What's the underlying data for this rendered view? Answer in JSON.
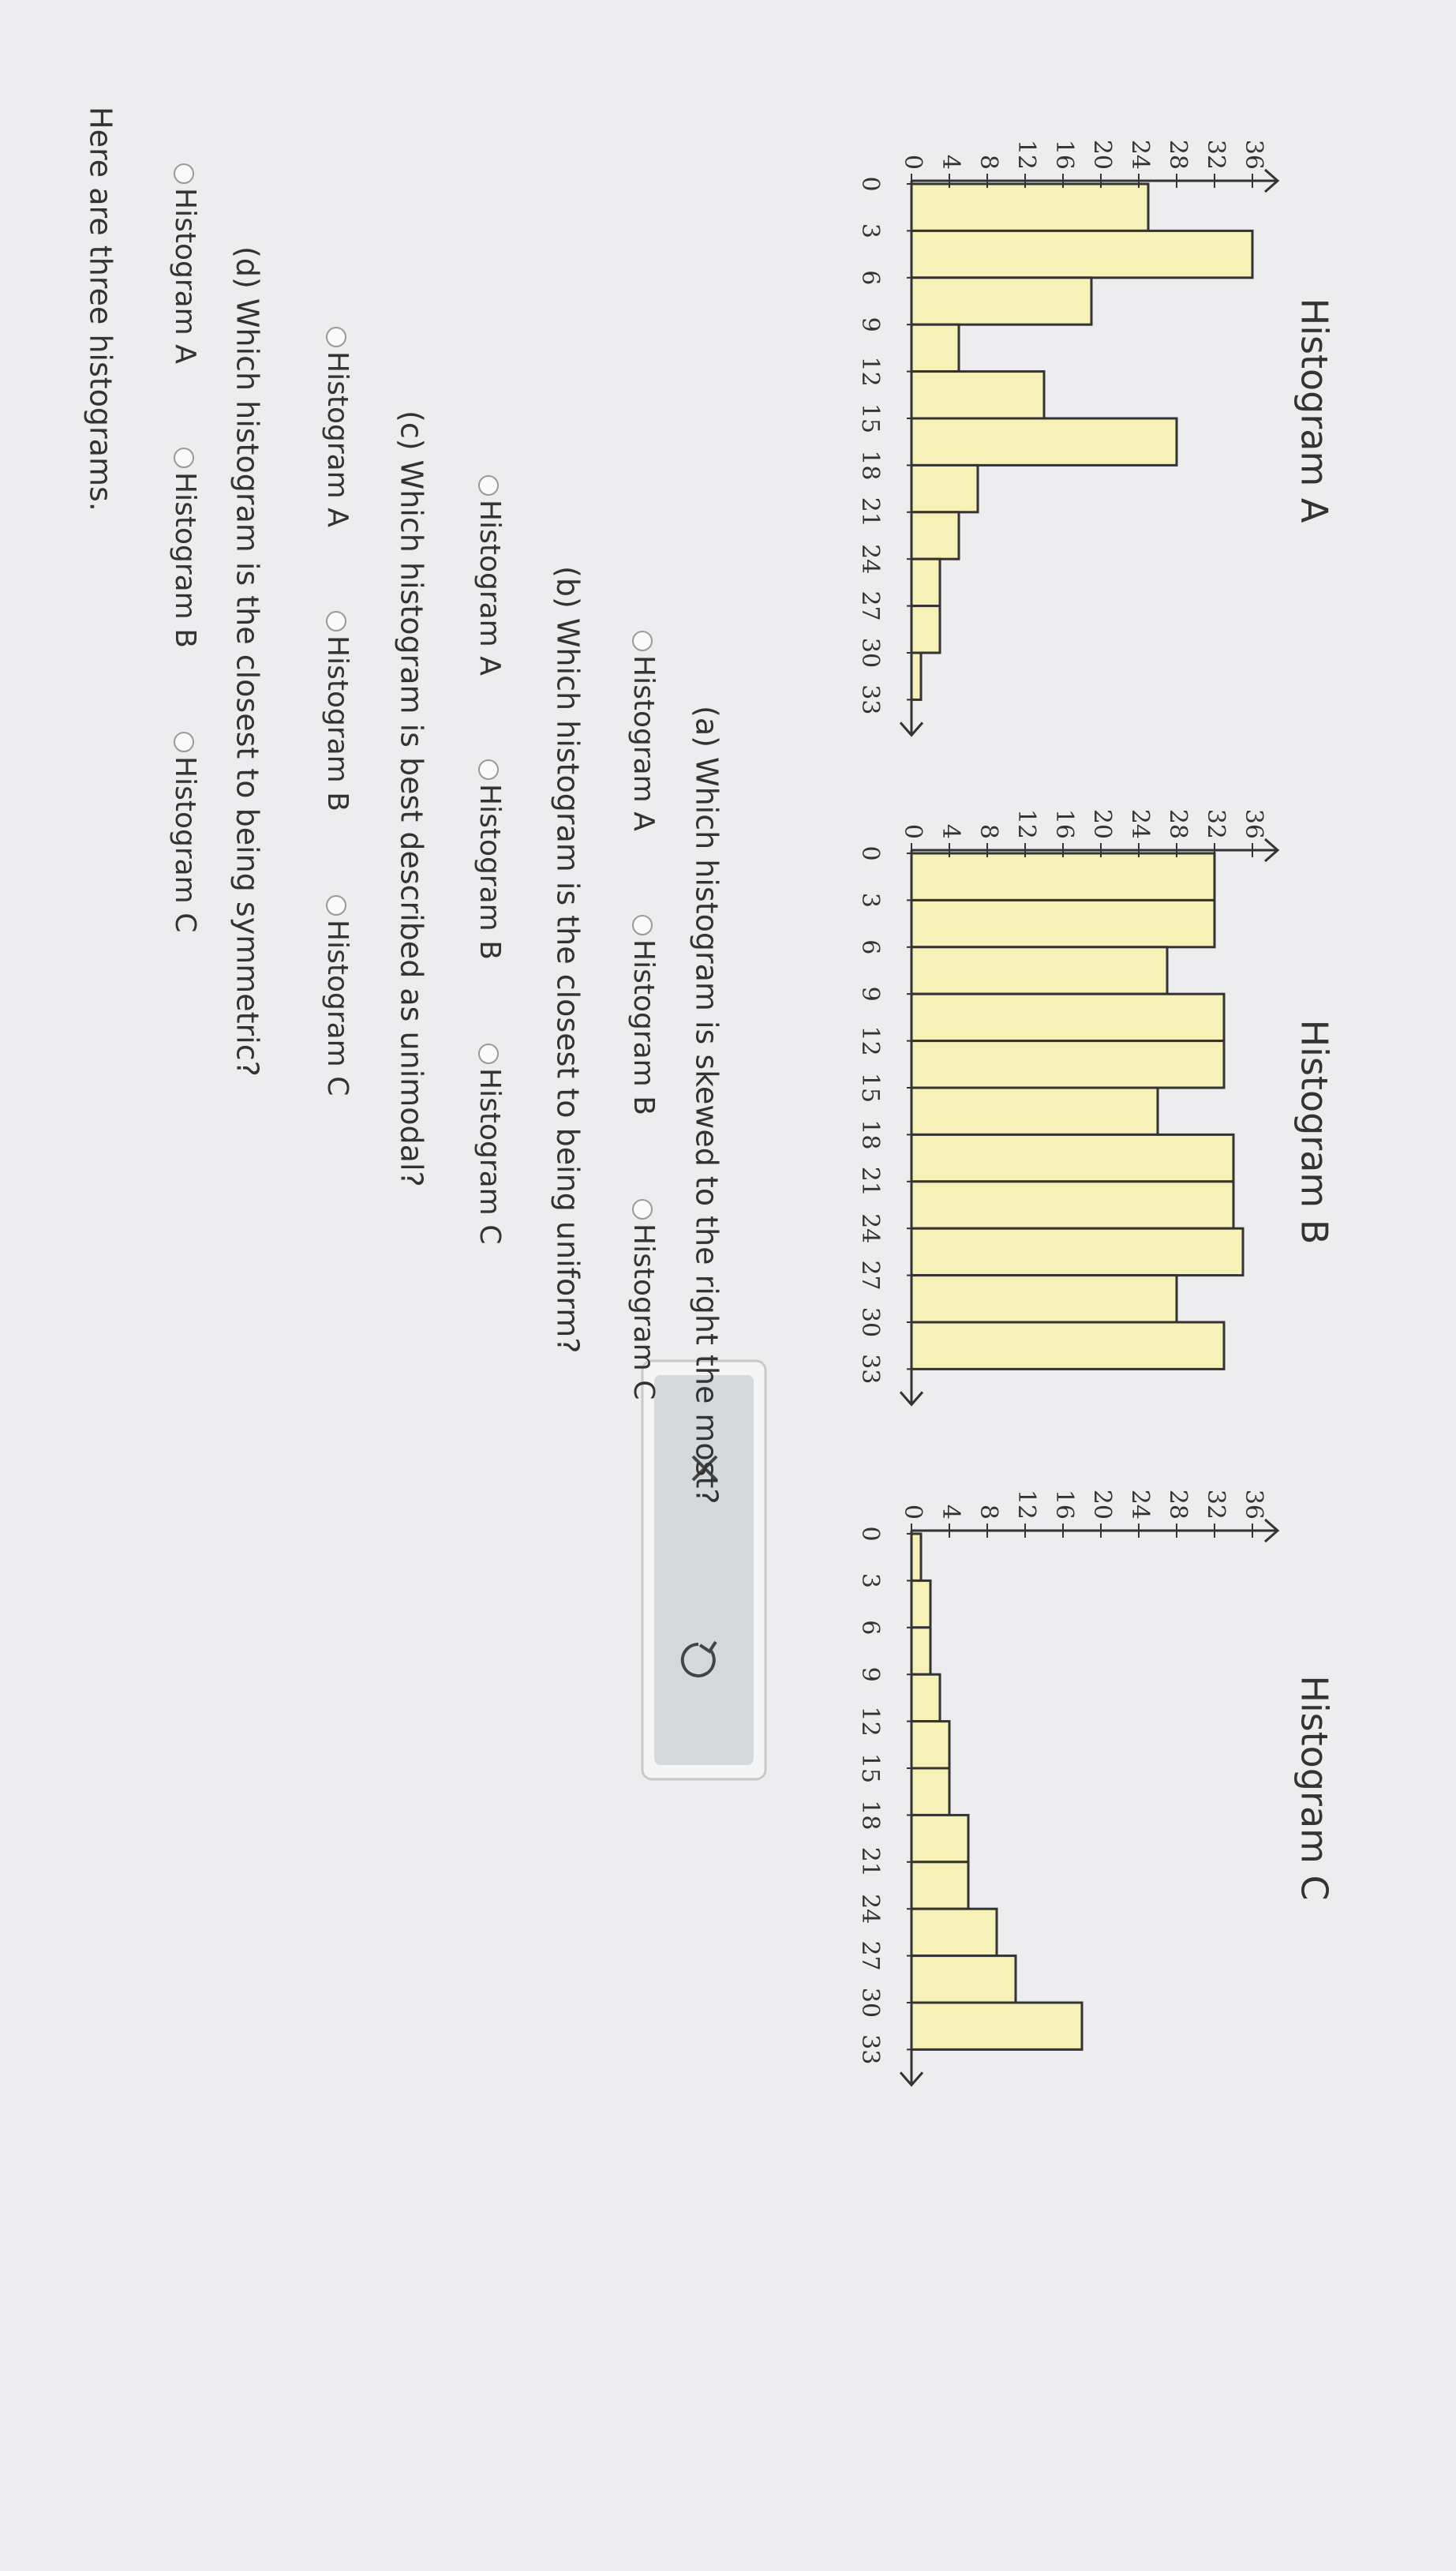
{
  "intro": "Here are three histograms.",
  "chart_data": [
    {
      "type": "histogram",
      "title": "Histogram A",
      "bins": [
        0,
        3,
        6,
        9,
        12,
        15,
        18,
        21,
        24,
        27,
        30,
        33
      ],
      "values": [
        25,
        36,
        19,
        5,
        14,
        28,
        7,
        5,
        3,
        3,
        1
      ],
      "color": "#f6f1b6",
      "xlim": [
        0,
        33
      ],
      "ylim": [
        0,
        36
      ],
      "xticks": [
        0,
        3,
        6,
        9,
        12,
        15,
        18,
        21,
        24,
        27,
        30,
        33
      ],
      "yticks": [
        0,
        4,
        8,
        12,
        16,
        20,
        24,
        28,
        32,
        36
      ]
    },
    {
      "type": "histogram",
      "title": "Histogram B",
      "bins": [
        0,
        3,
        6,
        9,
        12,
        15,
        18,
        21,
        24,
        27,
        30,
        33
      ],
      "values": [
        32,
        32,
        27,
        33,
        33,
        26,
        34,
        34,
        35,
        28,
        33
      ],
      "color": "#f6f1b6",
      "xlim": [
        0,
        33
      ],
      "ylim": [
        0,
        36
      ],
      "xticks": [
        0,
        3,
        6,
        9,
        12,
        15,
        18,
        21,
        24,
        27,
        30,
        33
      ],
      "yticks": [
        0,
        4,
        8,
        12,
        16,
        20,
        24,
        28,
        32,
        36
      ]
    },
    {
      "type": "histogram",
      "title": "Histogram C",
      "bins": [
        0,
        3,
        6,
        9,
        12,
        15,
        18,
        21,
        24,
        27,
        30,
        33
      ],
      "values": [
        1,
        2,
        2,
        3,
        4,
        4,
        6,
        6,
        9,
        11,
        18
      ],
      "color": "#f6f1b6",
      "xlim": [
        0,
        33
      ],
      "ylim": [
        0,
        36
      ],
      "xticks": [
        0,
        3,
        6,
        9,
        12,
        15,
        18,
        21,
        24,
        27,
        30,
        33
      ],
      "yticks": [
        0,
        4,
        8,
        12,
        16,
        20,
        24,
        28,
        32,
        36
      ]
    }
  ],
  "questions": [
    {
      "prompt": "(a) Which histogram is skewed to the right the most?",
      "options": [
        "Histogram A",
        "Histogram B",
        "Histogram C"
      ]
    },
    {
      "prompt": "(b) Which histogram is the closest to being uniform?",
      "options": [
        "Histogram A",
        "Histogram B",
        "Histogram C"
      ]
    },
    {
      "prompt": "(c) Which histogram is best described as unimodal?",
      "options": [
        "Histogram A",
        "Histogram B",
        "Histogram C"
      ]
    },
    {
      "prompt": "(d) Which histogram is the closest to being symmetric?",
      "options": [
        "Histogram A",
        "Histogram B",
        "Histogram C"
      ]
    }
  ]
}
